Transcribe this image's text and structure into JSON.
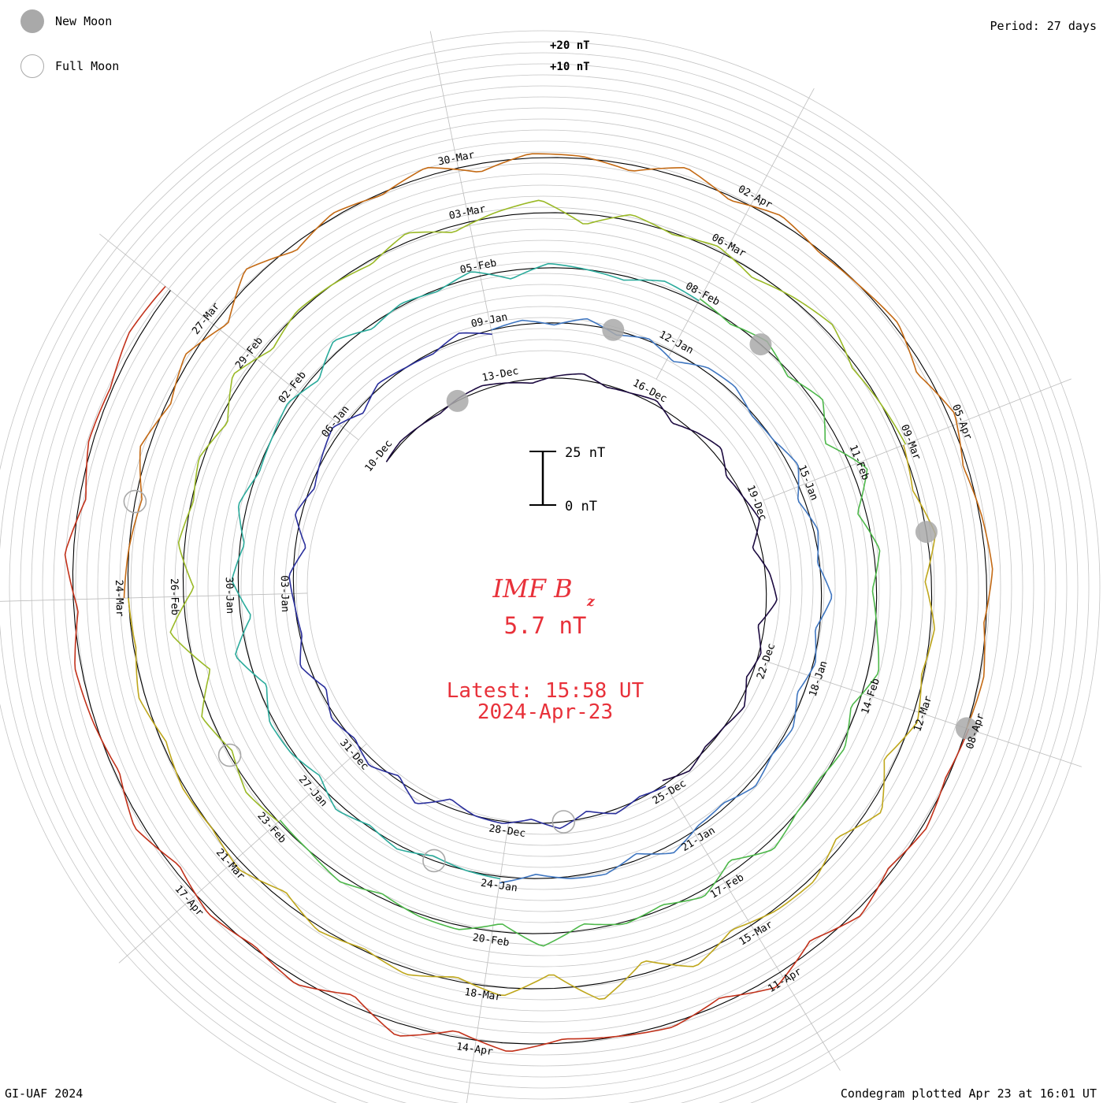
{
  "legend": {
    "new_moon_label": "New Moon",
    "full_moon_label": "Full Moon"
  },
  "header": {
    "period": "Period: 27 days"
  },
  "footer": {
    "credit": "GI-UAF 2024",
    "plotted": "Condegram plotted Apr 23 at 16:01 UT"
  },
  "center": {
    "title_main": "IMF B",
    "title_sub": "z",
    "value": "5.7 nT",
    "latest": "Latest: 15:58 UT",
    "date": "2024-Apr-23",
    "scale_top": "25 nT",
    "scale_bottom": "0 nT"
  },
  "colors": {
    "text_accent": "#e8313a",
    "grid": "#b8b8b8",
    "baseline": "#000000",
    "moon": "#a9a9a9"
  },
  "chart_data": {
    "type": "line",
    "form": "condegram spiral (27-day rotation per turn)",
    "period_days": 27,
    "start_date": "2023-12-10",
    "end_date": "2024-04-23",
    "y_unit": "nT",
    "ring_labels": [
      "+20 nT",
      "+10 nT"
    ],
    "scale_bar": [
      0,
      25
    ],
    "latest_value": 5.7,
    "date_labels": [
      "10-Dec",
      "13-Dec",
      "16-Dec",
      "19-Dec",
      "22-Dec",
      "25-Dec",
      "28-Dec",
      "31-Dec",
      "03-Jan",
      "06-Jan",
      "09-Jan",
      "12-Jan",
      "15-Jan",
      "18-Jan",
      "21-Jan",
      "24-Jan",
      "27-Jan",
      "30-Jan",
      "02-Feb",
      "05-Feb",
      "08-Feb",
      "11-Feb",
      "14-Feb",
      "17-Feb",
      "20-Feb",
      "23-Feb",
      "26-Feb",
      "29-Feb",
      "03-Mar",
      "06-Mar",
      "09-Mar",
      "12-Mar",
      "15-Mar",
      "18-Mar",
      "21-Mar",
      "24-Mar",
      "27-Mar",
      "30-Mar",
      "02-Apr",
      "05-Apr",
      "08-Apr",
      "11-Apr",
      "14-Apr",
      "17-Apr"
    ],
    "new_moon": [
      "2023-12-12",
      "2024-01-11",
      "2024-02-09",
      "2024-03-10",
      "2024-04-08"
    ],
    "full_moon": [
      "2023-12-27",
      "2024-01-25",
      "2024-02-24",
      "2024-03-25"
    ],
    "series": [
      {
        "color": "#1c0a40",
        "values": [
          0,
          1,
          0,
          -1,
          1,
          2,
          0,
          -2,
          1,
          3,
          -1,
          0,
          2,
          -3,
          1,
          4,
          -2,
          0,
          3,
          -4,
          2,
          5,
          -3,
          1,
          -2,
          3,
          0,
          -1,
          2,
          -2
        ]
      },
      {
        "color": "#2a2f9c",
        "values": [
          1,
          -1,
          2,
          -3,
          3,
          -2,
          1,
          0,
          -4,
          5,
          -2,
          3,
          -1,
          2,
          -3,
          4,
          -1,
          0,
          2,
          -5,
          3,
          -2,
          1,
          4,
          -3,
          2,
          0,
          -1,
          3,
          -2
        ]
      },
      {
        "color": "#3f76c0",
        "values": [
          0,
          2,
          -1,
          3,
          -2,
          1,
          -4,
          2,
          3,
          -1,
          0,
          4,
          -3,
          2,
          -1,
          5,
          -2,
          1,
          -3,
          2,
          0,
          3,
          -2,
          -1,
          4,
          -3,
          2,
          1,
          -2,
          3
        ]
      },
      {
        "color": "#2bab9c",
        "values": [
          1,
          0,
          -2,
          2,
          -1,
          3,
          -3,
          1,
          2,
          -4,
          6,
          -5,
          3,
          -2,
          4,
          -1,
          0,
          2,
          -3,
          5,
          -2,
          1,
          -1,
          3,
          -4,
          2,
          0,
          -2,
          3,
          1
        ]
      },
      {
        "color": "#4db84a",
        "values": [
          2,
          -1,
          3,
          -2,
          4,
          -6,
          7,
          -4,
          3,
          -2,
          1,
          5,
          -3,
          2,
          -1,
          0,
          4,
          -5,
          3,
          -2,
          1,
          -3,
          6,
          -4,
          2,
          1,
          -2,
          3,
          0,
          -1
        ]
      },
      {
        "color": "#9ab926",
        "values": [
          0,
          3,
          -2,
          4,
          -7,
          8,
          -5,
          3,
          -1,
          2,
          -4,
          5,
          -3,
          1,
          0,
          -2,
          4,
          -3,
          2,
          6,
          -5,
          3,
          -1,
          2,
          -3,
          1,
          4,
          -2,
          0,
          2
        ]
      },
      {
        "color": "#bfa71c",
        "values": [
          1,
          -2,
          4,
          -3,
          2,
          -1,
          3,
          -5,
          6,
          -4,
          2,
          1,
          -3,
          5,
          -6,
          8,
          -7,
          4,
          -2,
          3,
          -1,
          2,
          -4,
          3,
          0,
          1,
          -2,
          3,
          -1,
          0
        ]
      },
      {
        "color": "#c46a14",
        "values": [
          2,
          0,
          -3,
          4,
          -2,
          3,
          -5,
          6,
          -3,
          2,
          -1,
          4,
          -4,
          2,
          1,
          -3,
          5,
          -2,
          3,
          -1,
          0,
          2,
          -4,
          3,
          -2,
          1,
          3,
          -1,
          2,
          0
        ]
      },
      {
        "color": "#c2311a",
        "values": [
          1,
          -1,
          2,
          -2,
          3,
          -4,
          5,
          -3,
          2,
          0,
          -2,
          4,
          -3,
          6,
          -5,
          3,
          -1,
          2,
          -3,
          4,
          -2,
          1,
          3,
          -2,
          4,
          -3,
          2,
          1,
          5,
          3
        ]
      }
    ]
  }
}
